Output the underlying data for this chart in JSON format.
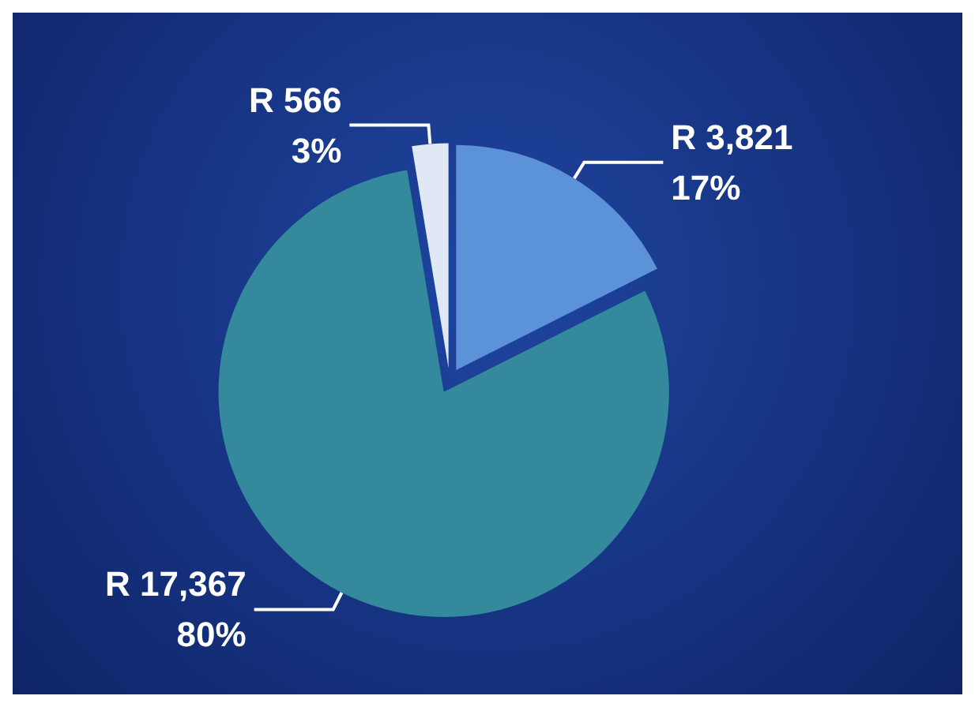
{
  "chart_data": {
    "type": "pie",
    "categories": [
      null,
      null,
      null
    ],
    "values": [
      3821,
      17367,
      566
    ],
    "colors": [
      "#5b92d8",
      "#348a9c",
      "#dfe8f4"
    ],
    "value_labels": [
      "R 3,821\n17%",
      "R 17,367\n80%",
      "R 566\n3%"
    ]
  }
}
